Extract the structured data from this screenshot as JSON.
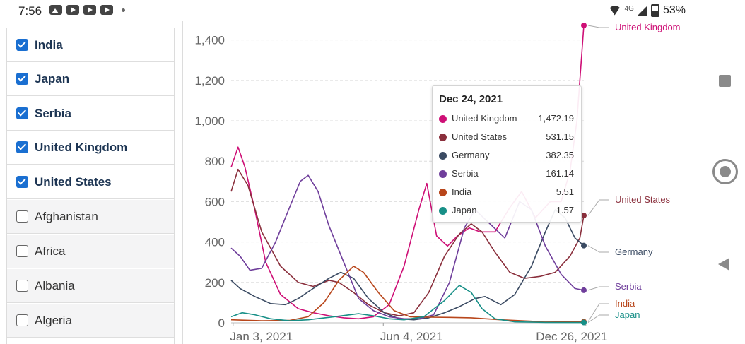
{
  "status_bar": {
    "time": "7:56",
    "network": "4G",
    "battery": "53%"
  },
  "filter_list": {
    "items": [
      {
        "label": "India",
        "checked": true
      },
      {
        "label": "Japan",
        "checked": true
      },
      {
        "label": "Serbia",
        "checked": true
      },
      {
        "label": "United Kingdom",
        "checked": true
      },
      {
        "label": "United States",
        "checked": true
      },
      {
        "label": "Afghanistan",
        "checked": false
      },
      {
        "label": "Africa",
        "checked": false
      },
      {
        "label": "Albania",
        "checked": false
      },
      {
        "label": "Algeria",
        "checked": false
      }
    ]
  },
  "tooltip": {
    "date": "Dec 24, 2021",
    "rows": [
      {
        "name": "United Kingdom",
        "value": "1,472.19",
        "color": "#ce0f76"
      },
      {
        "name": "United States",
        "value": "531.15",
        "color": "#8a2f3c"
      },
      {
        "name": "Germany",
        "value": "382.35",
        "color": "#3a4a62"
      },
      {
        "name": "Serbia",
        "value": "161.14",
        "color": "#6f3e9b"
      },
      {
        "name": "India",
        "value": "5.51",
        "color": "#b8461b"
      },
      {
        "name": "Japan",
        "value": "1.57",
        "color": "#178f87"
      }
    ]
  },
  "chart_data": {
    "type": "line",
    "title": "",
    "xlabel": "",
    "ylabel": "",
    "ylim": [
      0,
      1472.19
    ],
    "yticks": [
      0,
      200,
      400,
      600,
      800,
      1000,
      1200,
      1400
    ],
    "ytick_labels": [
      "0",
      "200",
      "400",
      "600",
      "800",
      "1,000",
      "1,200",
      "1,400"
    ],
    "xtick_labels": [
      "Jan 3, 2021",
      "Jun 4, 2021",
      "Dec 26, 2021"
    ],
    "xticks": [
      "2021-01-03",
      "2021-06-04",
      "2021-12-26"
    ],
    "xlim": [
      "2021-01-01",
      "2021-12-24"
    ],
    "grid": true,
    "series": [
      {
        "name": "United Kingdom",
        "color": "#ce0f76",
        "points": [
          [
            "2021-01-01",
            770
          ],
          [
            "2021-01-08",
            870
          ],
          [
            "2021-01-15",
            770
          ],
          [
            "2021-01-25",
            560
          ],
          [
            "2021-02-05",
            300
          ],
          [
            "2021-02-20",
            140
          ],
          [
            "2021-03-10",
            70
          ],
          [
            "2021-03-25",
            50
          ],
          [
            "2021-04-10",
            35
          ],
          [
            "2021-04-25",
            25
          ],
          [
            "2021-05-10",
            20
          ],
          [
            "2021-05-25",
            30
          ],
          [
            "2021-06-10",
            90
          ],
          [
            "2021-06-25",
            280
          ],
          [
            "2021-07-10",
            560
          ],
          [
            "2021-07-18",
            690
          ],
          [
            "2021-07-28",
            430
          ],
          [
            "2021-08-08",
            380
          ],
          [
            "2021-08-18",
            430
          ],
          [
            "2021-08-30",
            470
          ],
          [
            "2021-09-10",
            450
          ],
          [
            "2021-09-25",
            450
          ],
          [
            "2021-10-10",
            570
          ],
          [
            "2021-10-22",
            650
          ],
          [
            "2021-11-05",
            520
          ],
          [
            "2021-11-20",
            600
          ],
          [
            "2021-12-01",
            600
          ],
          [
            "2021-12-10",
            750
          ],
          [
            "2021-12-17",
            1000
          ],
          [
            "2021-12-24",
            1472.19
          ]
        ]
      },
      {
        "name": "United States",
        "color": "#8a2f3c",
        "points": [
          [
            "2021-01-01",
            650
          ],
          [
            "2021-01-08",
            760
          ],
          [
            "2021-01-18",
            680
          ],
          [
            "2021-02-01",
            450
          ],
          [
            "2021-02-20",
            280
          ],
          [
            "2021-03-10",
            200
          ],
          [
            "2021-03-25",
            180
          ],
          [
            "2021-04-10",
            210
          ],
          [
            "2021-04-20",
            200
          ],
          [
            "2021-05-05",
            150
          ],
          [
            "2021-05-20",
            90
          ],
          [
            "2021-06-05",
            50
          ],
          [
            "2021-06-20",
            35
          ],
          [
            "2021-07-05",
            50
          ],
          [
            "2021-07-20",
            150
          ],
          [
            "2021-08-05",
            330
          ],
          [
            "2021-08-20",
            440
          ],
          [
            "2021-09-01",
            490
          ],
          [
            "2021-09-12",
            450
          ],
          [
            "2021-09-25",
            350
          ],
          [
            "2021-10-10",
            250
          ],
          [
            "2021-10-25",
            220
          ],
          [
            "2021-11-10",
            230
          ],
          [
            "2021-11-25",
            250
          ],
          [
            "2021-12-10",
            330
          ],
          [
            "2021-12-20",
            420
          ],
          [
            "2021-12-24",
            531.15
          ]
        ]
      },
      {
        "name": "Germany",
        "color": "#3a4a62",
        "points": [
          [
            "2021-01-01",
            210
          ],
          [
            "2021-01-10",
            170
          ],
          [
            "2021-01-25",
            130
          ],
          [
            "2021-02-10",
            95
          ],
          [
            "2021-02-25",
            90
          ],
          [
            "2021-03-10",
            120
          ],
          [
            "2021-03-25",
            170
          ],
          [
            "2021-04-10",
            220
          ],
          [
            "2021-04-22",
            250
          ],
          [
            "2021-05-05",
            220
          ],
          [
            "2021-05-20",
            120
          ],
          [
            "2021-06-05",
            50
          ],
          [
            "2021-06-20",
            20
          ],
          [
            "2021-07-05",
            15
          ],
          [
            "2021-07-20",
            25
          ],
          [
            "2021-08-05",
            50
          ],
          [
            "2021-08-20",
            80
          ],
          [
            "2021-09-05",
            120
          ],
          [
            "2021-09-15",
            130
          ],
          [
            "2021-10-01",
            90
          ],
          [
            "2021-10-15",
            140
          ],
          [
            "2021-11-01",
            280
          ],
          [
            "2021-11-15",
            450
          ],
          [
            "2021-11-25",
            560
          ],
          [
            "2021-12-05",
            520
          ],
          [
            "2021-12-15",
            420
          ],
          [
            "2021-12-24",
            382.35
          ]
        ]
      },
      {
        "name": "Serbia",
        "color": "#6f3e9b",
        "points": [
          [
            "2021-01-01",
            370
          ],
          [
            "2021-01-10",
            330
          ],
          [
            "2021-01-20",
            260
          ],
          [
            "2021-02-01",
            270
          ],
          [
            "2021-02-15",
            400
          ],
          [
            "2021-03-01",
            570
          ],
          [
            "2021-03-12",
            700
          ],
          [
            "2021-03-20",
            730
          ],
          [
            "2021-03-30",
            650
          ],
          [
            "2021-04-10",
            480
          ],
          [
            "2021-04-25",
            300
          ],
          [
            "2021-05-10",
            120
          ],
          [
            "2021-05-25",
            60
          ],
          [
            "2021-06-10",
            30
          ],
          [
            "2021-06-25",
            20
          ],
          [
            "2021-07-10",
            20
          ],
          [
            "2021-07-25",
            40
          ],
          [
            "2021-08-10",
            200
          ],
          [
            "2021-08-25",
            470
          ],
          [
            "2021-09-05",
            560
          ],
          [
            "2021-09-20",
            490
          ],
          [
            "2021-10-05",
            420
          ],
          [
            "2021-10-20",
            600
          ],
          [
            "2021-11-01",
            560
          ],
          [
            "2021-11-15",
            380
          ],
          [
            "2021-12-01",
            240
          ],
          [
            "2021-12-15",
            170
          ],
          [
            "2021-12-24",
            161.14
          ]
        ]
      },
      {
        "name": "India",
        "color": "#b8461b",
        "points": [
          [
            "2021-01-01",
            15
          ],
          [
            "2021-02-01",
            10
          ],
          [
            "2021-03-01",
            12
          ],
          [
            "2021-03-20",
            30
          ],
          [
            "2021-04-05",
            100
          ],
          [
            "2021-04-20",
            210
          ],
          [
            "2021-05-05",
            280
          ],
          [
            "2021-05-15",
            250
          ],
          [
            "2021-05-30",
            150
          ],
          [
            "2021-06-15",
            60
          ],
          [
            "2021-07-01",
            30
          ],
          [
            "2021-07-20",
            28
          ],
          [
            "2021-08-10",
            27
          ],
          [
            "2021-09-01",
            25
          ],
          [
            "2021-10-01",
            15
          ],
          [
            "2021-11-01",
            8
          ],
          [
            "2021-12-01",
            6
          ],
          [
            "2021-12-24",
            5.51
          ]
        ]
      },
      {
        "name": "Japan",
        "color": "#178f87",
        "points": [
          [
            "2021-01-01",
            30
          ],
          [
            "2021-01-12",
            50
          ],
          [
            "2021-01-25",
            40
          ],
          [
            "2021-02-10",
            20
          ],
          [
            "2021-03-01",
            10
          ],
          [
            "2021-03-20",
            15
          ],
          [
            "2021-04-15",
            30
          ],
          [
            "2021-05-10",
            45
          ],
          [
            "2021-05-25",
            35
          ],
          [
            "2021-06-10",
            20
          ],
          [
            "2021-06-25",
            15
          ],
          [
            "2021-07-15",
            30
          ],
          [
            "2021-08-05",
            110
          ],
          [
            "2021-08-20",
            185
          ],
          [
            "2021-09-01",
            150
          ],
          [
            "2021-09-12",
            70
          ],
          [
            "2021-09-25",
            20
          ],
          [
            "2021-10-15",
            5
          ],
          [
            "2021-11-15",
            2
          ],
          [
            "2021-12-24",
            1.57
          ]
        ]
      }
    ]
  },
  "end_labels": [
    {
      "name": "United Kingdom",
      "color": "#ce0f76"
    },
    {
      "name": "United States",
      "color": "#8a2f3c"
    },
    {
      "name": "Germany",
      "color": "#3a4a62"
    },
    {
      "name": "Serbia",
      "color": "#6f3e9b"
    },
    {
      "name": "India",
      "color": "#b8461b"
    },
    {
      "name": "Japan",
      "color": "#178f87"
    }
  ]
}
